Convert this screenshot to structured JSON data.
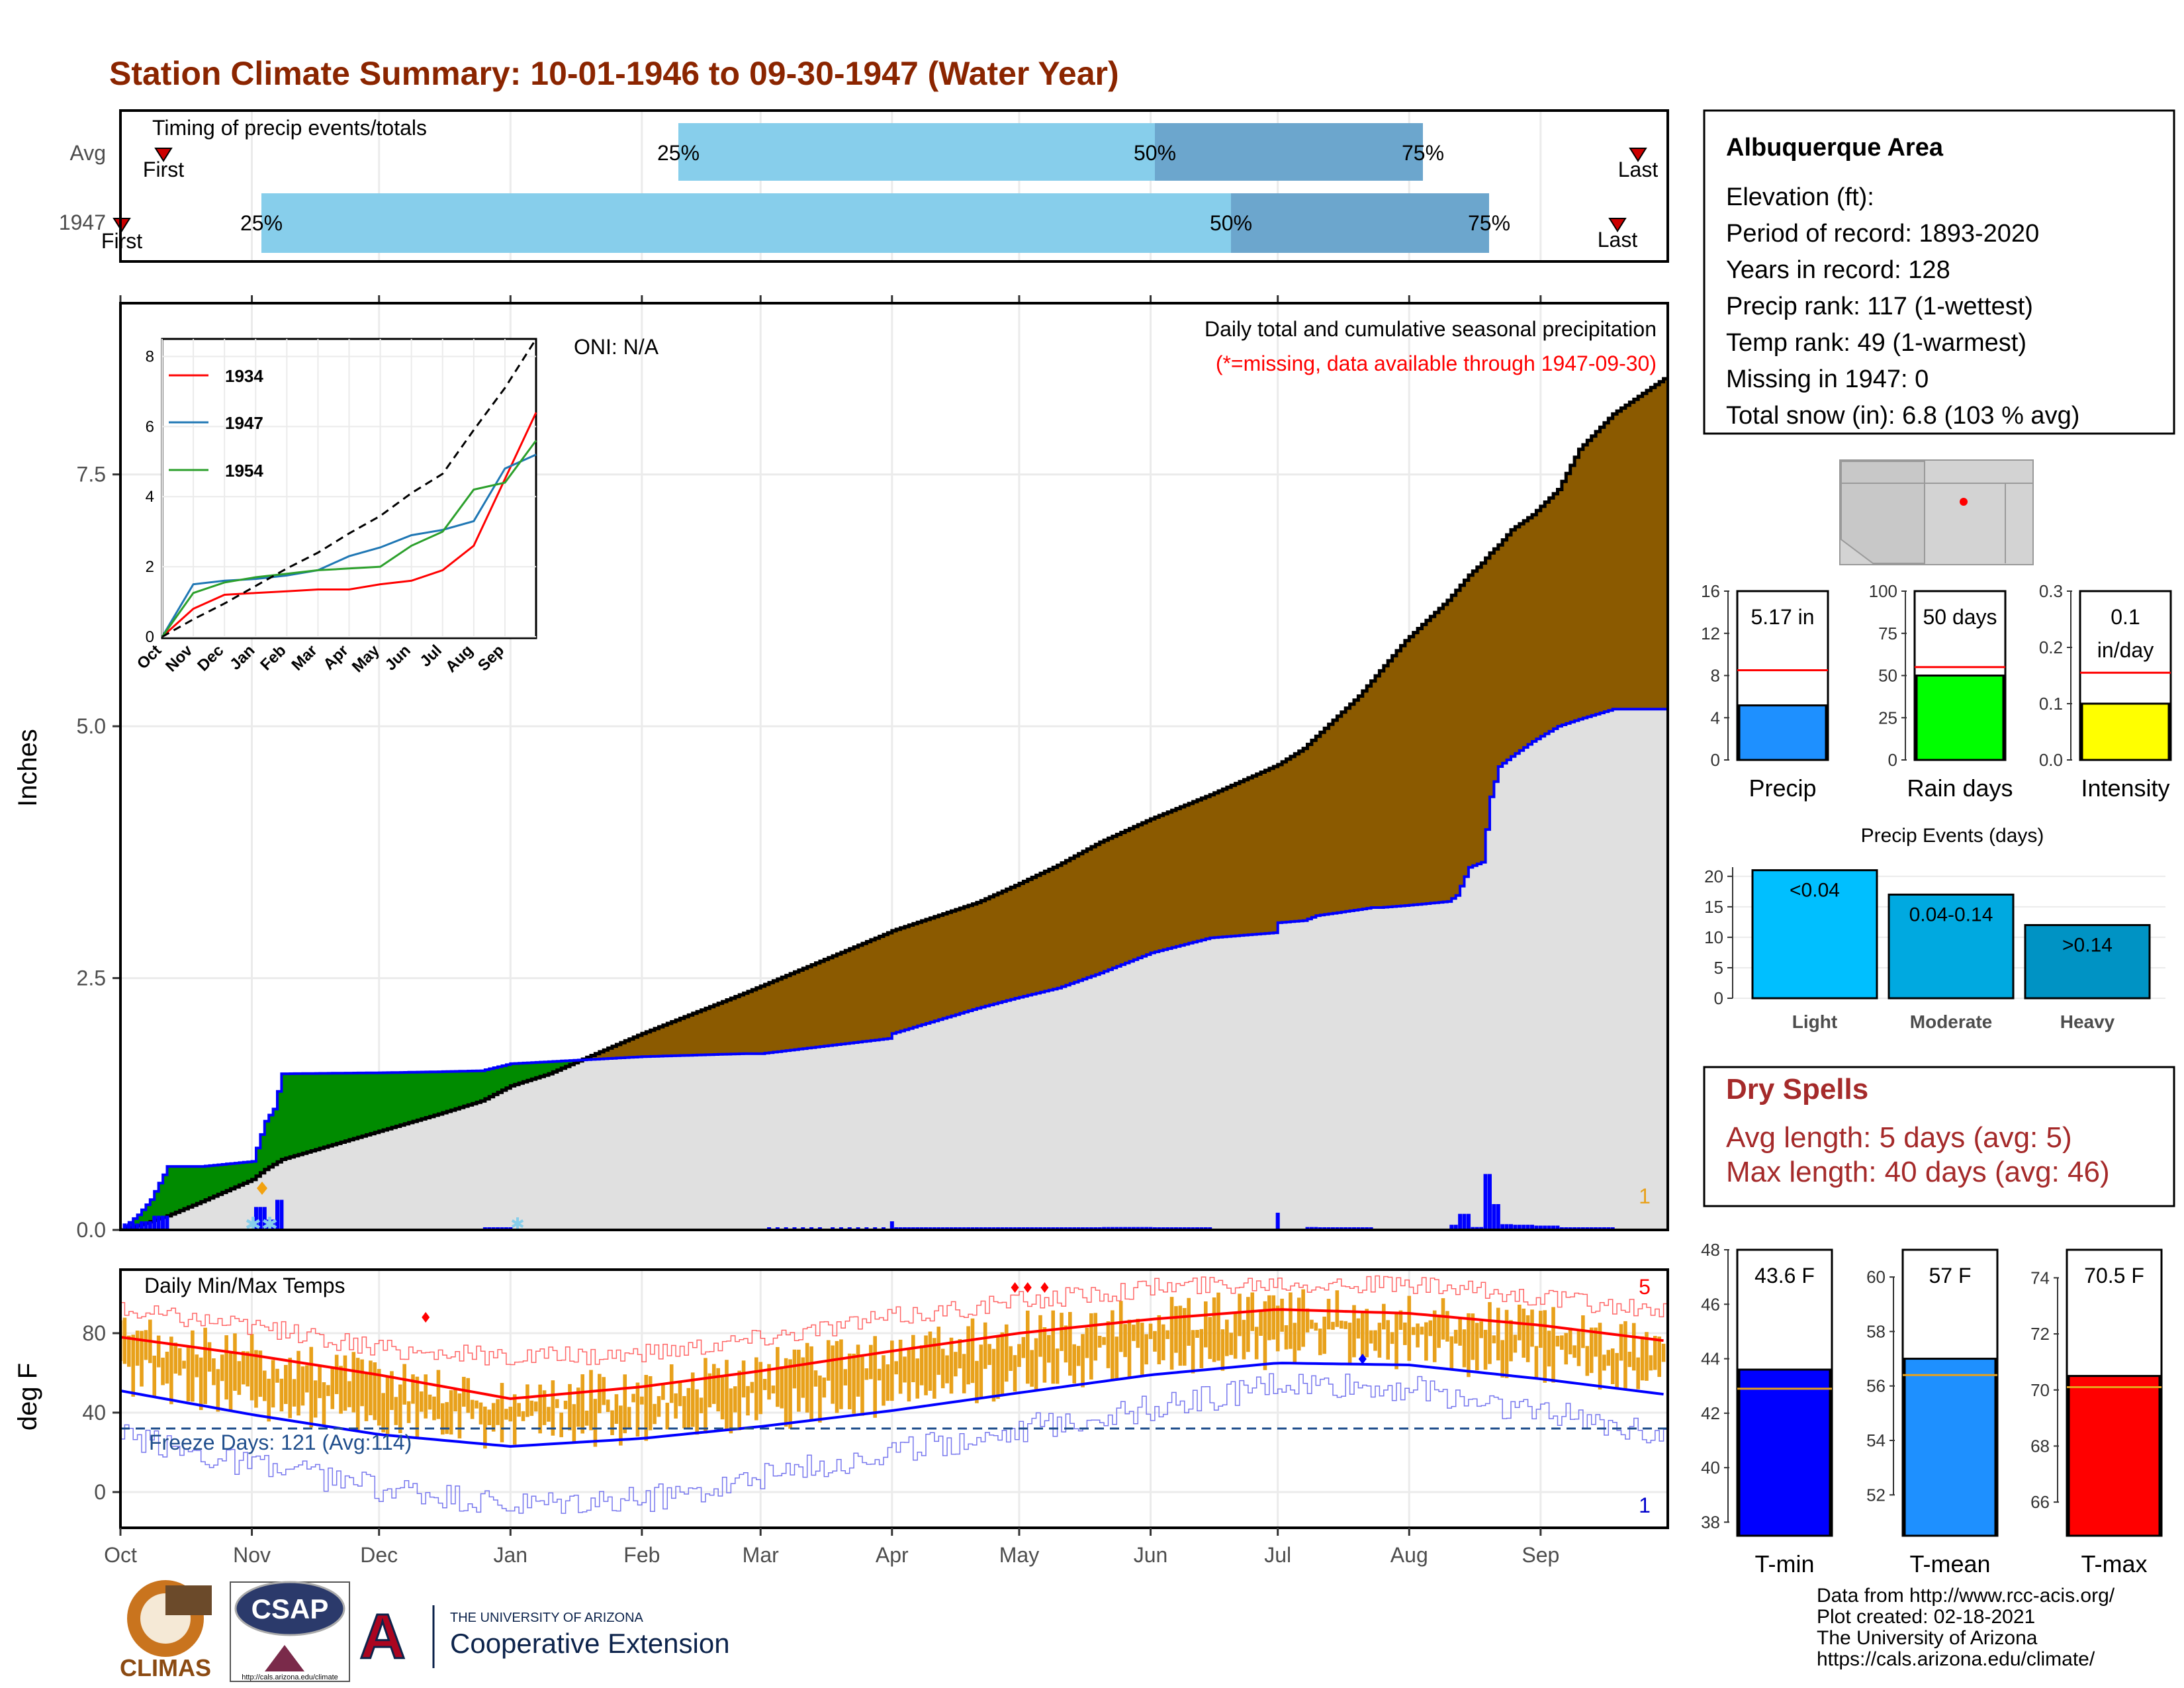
{
  "title": "Station Climate Summary: 10-01-1946 to 09-30-1947 (Water Year)",
  "colors": {
    "title": "#8b2500",
    "light_blue": "#87ceeb",
    "mid_blue": "#6ca6cd",
    "brown": "#8b5a00",
    "green": "#008b00",
    "gray_fill": "#e0e0e0",
    "blue": "#0000ff",
    "red": "#ff0000",
    "orange": "#e8a11b",
    "dry_spells": "#a52a2a"
  },
  "timing": {
    "label": "Timing of precip events/totals",
    "rows": [
      "Avg",
      "1947"
    ],
    "avg": {
      "first": "First",
      "last": "Last",
      "p25": "25%",
      "p50": "50%",
      "p75": "75%"
    },
    "y1947": {
      "first": "First",
      "last": "Last",
      "p25": "25%",
      "p50": "50%",
      "p75": "75%"
    }
  },
  "main": {
    "ylabel": "Inches",
    "title": "Daily total and cumulative seasonal precipitation",
    "missing_note": "(*=missing, data available through 1947-09-30)",
    "oni": "ONI: N/A",
    "yticks": [
      "0.0",
      "2.5",
      "5.0",
      "7.5"
    ],
    "bottom_count": "1"
  },
  "inset": {
    "series": [
      "1934",
      "1947",
      "1954"
    ],
    "yticks": [
      "0",
      "2",
      "4",
      "6",
      "8"
    ],
    "months": [
      "Oct",
      "Nov",
      "Dec",
      "Jan",
      "Feb",
      "Mar",
      "Apr",
      "May",
      "Jun",
      "Jul",
      "Aug",
      "Sep"
    ]
  },
  "temps": {
    "ylabel": "deg F",
    "label": "Daily Min/Max Temps",
    "freeze": "Freeze Days: 121 (Avg:114)",
    "yticks": [
      "0",
      "40",
      "80"
    ],
    "count_top": "5",
    "count_bottom": "1"
  },
  "months": [
    "Oct",
    "Nov",
    "Dec",
    "Jan",
    "Feb",
    "Mar",
    "Apr",
    "May",
    "Jun",
    "Jul",
    "Aug",
    "Sep"
  ],
  "info": {
    "station": "Albuquerque Area",
    "elevation": "Elevation (ft):",
    "period": "Period of record: 1893-2020",
    "years": "Years in record: 128",
    "precip_rank": "Precip rank: 117 (1-wettest)",
    "temp_rank": "Temp rank: 49 (1-warmest)",
    "missing": "Missing in 1947: 0",
    "snow": "Total snow (in): 6.8 (103 % avg)"
  },
  "precip_panels": [
    {
      "label": "Precip",
      "value_text": "5.17 in",
      "yticks": [
        "0",
        "4",
        "8",
        "12",
        "16"
      ]
    },
    {
      "label": "Rain days",
      "value_text": "50 days",
      "yticks": [
        "0",
        "25",
        "50",
        "75",
        "100"
      ]
    },
    {
      "label": "Intensity",
      "value_text": "0.1",
      "value_text2": "in/day",
      "yticks": [
        "0.0",
        "0.1",
        "0.2",
        "0.3"
      ]
    }
  ],
  "events": {
    "title": "Precip Events (days)",
    "yticks": [
      "0",
      "5",
      "10",
      "15",
      "20"
    ],
    "bars": [
      {
        "category": "Light",
        "label": "<0.04"
      },
      {
        "category": "Moderate",
        "label": "0.04-0.14"
      },
      {
        "category": "Heavy",
        "label": ">0.14"
      }
    ]
  },
  "dry_spells": {
    "title": "Dry Spells",
    "avg": "Avg length: 5 days (avg: 5)",
    "max": "Max length: 40 days (avg: 46)"
  },
  "temp_panels": [
    {
      "label": "T-min",
      "value_text": "43.6 F",
      "yticks": [
        "38",
        "40",
        "42",
        "44",
        "46",
        "48"
      ]
    },
    {
      "label": "T-mean",
      "value_text": "57 F",
      "yticks": [
        "52",
        "54",
        "56",
        "58",
        "60"
      ]
    },
    {
      "label": "T-max",
      "value_text": "70.5 F",
      "yticks": [
        "66",
        "68",
        "70",
        "72",
        "74"
      ]
    }
  ],
  "footer": {
    "source": "Data from http://www.rcc-acis.org/",
    "created": "Plot created: 02-18-2021",
    "univ": "The University of Arizona",
    "url": "https://cals.arizona.edu/climate/"
  },
  "logos": {
    "climas": "CLIMAS",
    "csap": "CSAP",
    "csap_url": "http://cals.arizona.edu/climate",
    "ua_small": "THE UNIVERSITY OF ARIZONA",
    "coop": "Cooperative Extension"
  },
  "chart_data": [
    {
      "type": "timeline",
      "title": "Timing of precip events/totals",
      "rows": [
        {
          "name": "Avg",
          "first": "Oct 11",
          "p25": "Jan 26",
          "p50": "Jun 01",
          "p75": "Jul 17",
          "last": "Sep 22"
        },
        {
          "name": "1947",
          "first": "Oct 01",
          "p25": "Nov 03",
          "p50": "Jul 01",
          "p75": "Aug 18",
          "last": "Sep 18"
        }
      ]
    },
    {
      "type": "area",
      "title": "Daily total and cumulative seasonal precipitation",
      "ylabel": "Inches",
      "ylim": [
        0,
        9.2
      ],
      "x_dates": [
        "10-01",
        "10-05",
        "10-08",
        "10-12",
        "10-20",
        "11-01",
        "11-04",
        "11-06",
        "11-08",
        "12-01",
        "12-15",
        "12-25",
        "01-01",
        "01-10",
        "02-01",
        "02-25",
        "03-01",
        "03-31",
        "04-01",
        "04-21",
        "04-30",
        "05-10",
        "05-20",
        "06-01",
        "06-15",
        "06-30",
        "07-01",
        "07-07",
        "07-10",
        "07-20",
        "07-23",
        "07-25",
        "07-31",
        "08-10",
        "08-12",
        "08-15",
        "08-18",
        "08-20",
        "08-22",
        "08-25",
        "08-30",
        "09-05",
        "09-10",
        "09-18",
        "09-30"
      ],
      "series": [
        {
          "name": "1947",
          "values": [
            0,
            0.15,
            0.3,
            0.63,
            0.63,
            0.68,
            1.08,
            1.2,
            1.55,
            1.56,
            1.57,
            1.58,
            1.65,
            1.67,
            1.72,
            1.75,
            1.75,
            1.9,
            1.95,
            2.2,
            2.3,
            2.4,
            2.55,
            2.75,
            2.9,
            2.95,
            3.05,
            3.07,
            3.12,
            3.18,
            3.2,
            3.2,
            3.22,
            3.26,
            3.32,
            3.6,
            3.65,
            4.3,
            4.6,
            4.7,
            4.85,
            5.0,
            5.07,
            5.17,
            5.17
          ]
        },
        {
          "name": "Average",
          "values": [
            0,
            0.04,
            0.08,
            0.14,
            0.28,
            0.5,
            0.6,
            0.65,
            0.7,
            0.98,
            1.15,
            1.28,
            1.43,
            1.55,
            1.95,
            2.35,
            2.42,
            2.95,
            2.97,
            3.25,
            3.42,
            3.62,
            3.85,
            4.08,
            4.32,
            4.6,
            4.62,
            4.78,
            4.9,
            5.3,
            5.45,
            5.55,
            5.85,
            6.25,
            6.35,
            6.5,
            6.62,
            6.72,
            6.8,
            6.95,
            7.1,
            7.35,
            7.75,
            8.1,
            8.45
          ]
        }
      ]
    },
    {
      "type": "line",
      "title": "Cumulative precipitation, similar years",
      "ylim": [
        0,
        8.5
      ],
      "x": [
        "Oct",
        "Nov",
        "Dec",
        "Jan",
        "Feb",
        "Mar",
        "Apr",
        "May",
        "Jun",
        "Jul",
        "Aug",
        "Sep",
        "Sep 30"
      ],
      "series": [
        {
          "name": "1934",
          "values": [
            0,
            0.8,
            1.2,
            1.25,
            1.3,
            1.35,
            1.35,
            1.5,
            1.6,
            1.9,
            2.6,
            4.5,
            6.4
          ]
        },
        {
          "name": "1947",
          "values": [
            0,
            1.5,
            1.6,
            1.65,
            1.75,
            1.9,
            2.3,
            2.55,
            2.9,
            3.05,
            3.3,
            4.8,
            5.2
          ]
        },
        {
          "name": "1954",
          "values": [
            0,
            1.25,
            1.55,
            1.7,
            1.8,
            1.9,
            1.95,
            2.0,
            2.6,
            3.0,
            4.2,
            4.4,
            5.6
          ]
        },
        {
          "name": "Average",
          "values": [
            0,
            0.5,
            0.95,
            1.45,
            1.95,
            2.4,
            2.95,
            3.45,
            4.1,
            4.65,
            5.9,
            7.1,
            8.5
          ]
        }
      ]
    },
    {
      "type": "line",
      "title": "Daily Min/Max Temps",
      "ylabel": "deg F",
      "ylim": [
        -18,
        112
      ],
      "x": [
        "Oct 01",
        "Nov 01",
        "Dec 01",
        "Jan 01",
        "Feb 01",
        "Mar 01",
        "Apr 01",
        "May 01",
        "Jun 01",
        "Jul 01",
        "Aug 01",
        "Sep 01",
        "Sep 30"
      ],
      "series": [
        {
          "name": "Avg max",
          "values": [
            78,
            69,
            59,
            47,
            53,
            61,
            71,
            80,
            87,
            92,
            90,
            84,
            76
          ]
        },
        {
          "name": "Avg min",
          "values": [
            51,
            39,
            29,
            23,
            27,
            33,
            41,
            50,
            59,
            65,
            64,
            57,
            49
          ]
        },
        {
          "name": "Record max",
          "values": [
            92,
            84,
            72,
            68,
            70,
            78,
            88,
            96,
            103,
            106,
            104,
            98,
            90
          ]
        },
        {
          "name": "Record min",
          "values": [
            28,
            14,
            2,
            -8,
            -4,
            8,
            20,
            32,
            42,
            54,
            52,
            40,
            30
          ]
        },
        {
          "name": "Freeze line",
          "values": [
            32,
            32,
            32,
            32,
            32,
            32,
            32,
            32,
            32,
            32,
            32,
            32,
            32
          ]
        }
      ]
    },
    {
      "type": "bar",
      "categories": [
        "Precip",
        "Rain days",
        "Intensity"
      ],
      "series": [
        {
          "name": "1947",
          "values": [
            5.17,
            50,
            0.1
          ]
        },
        {
          "name": "Average",
          "values": [
            8.5,
            55,
            0.155
          ]
        }
      ],
      "ylims": [
        [
          0,
          16
        ],
        [
          0,
          100
        ],
        [
          0,
          0.3
        ]
      ]
    },
    {
      "type": "bar",
      "title": "Precip Events (days)",
      "categories": [
        "Light",
        "Moderate",
        "Heavy"
      ],
      "values": [
        21,
        17,
        12
      ],
      "ylim": [
        0,
        20
      ]
    },
    {
      "type": "bar",
      "categories": [
        "T-min",
        "T-mean",
        "T-max"
      ],
      "series": [
        {
          "name": "1947",
          "values": [
            43.6,
            57,
            70.5
          ]
        },
        {
          "name": "Average",
          "values": [
            42.9,
            56.4,
            70.1
          ]
        }
      ],
      "ylims": [
        [
          37.5,
          48
        ],
        [
          50.5,
          61
        ],
        [
          64.8,
          75
        ]
      ]
    }
  ]
}
